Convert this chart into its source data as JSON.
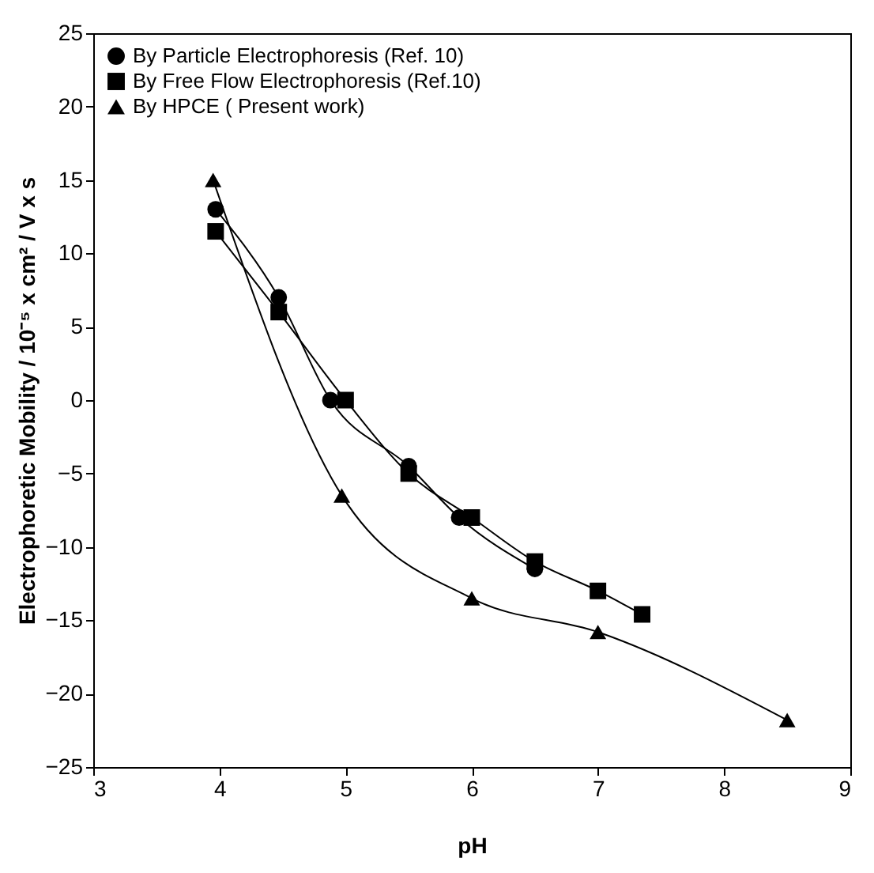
{
  "chart_data": {
    "type": "line",
    "xlabel": "pH",
    "ylabel": "Electrophoretic Mobility / 10⁻⁵ x cm² / V x s",
    "xlim": [
      3,
      9
    ],
    "ylim": [
      -25,
      25
    ],
    "xticks": [
      3,
      4,
      5,
      6,
      7,
      8,
      9
    ],
    "yticks": [
      -25,
      -20,
      -15,
      -10,
      -5,
      0,
      5,
      10,
      15,
      20,
      25
    ],
    "grid": false,
    "legend": "top left",
    "series": [
      {
        "name": "By Particle Electrophoresis (Ref. 10)",
        "color": "#000000",
        "marker": "circle",
        "x": [
          3.97,
          4.47,
          4.88,
          5.5,
          5.9,
          6.5
        ],
        "values": [
          13,
          7,
          0,
          -4.5,
          -8,
          -11.5
        ]
      },
      {
        "name": "By Free Flow Electrophoresis (Ref.10)",
        "color": "#000000",
        "marker": "square",
        "x": [
          3.97,
          4.47,
          5.0,
          5.5,
          6.0,
          6.5,
          7.0,
          7.35
        ],
        "values": [
          11.5,
          6,
          0,
          -5,
          -8,
          -11,
          -13,
          -14.6
        ]
      },
      {
        "name": "By HPCE ( Present work)",
        "color": "#000000",
        "marker": "triangle",
        "x": [
          3.95,
          4.97,
          6.0,
          7.0,
          8.5
        ],
        "values": [
          15,
          -6.5,
          -13.5,
          -15.8,
          -21.8
        ]
      }
    ]
  }
}
